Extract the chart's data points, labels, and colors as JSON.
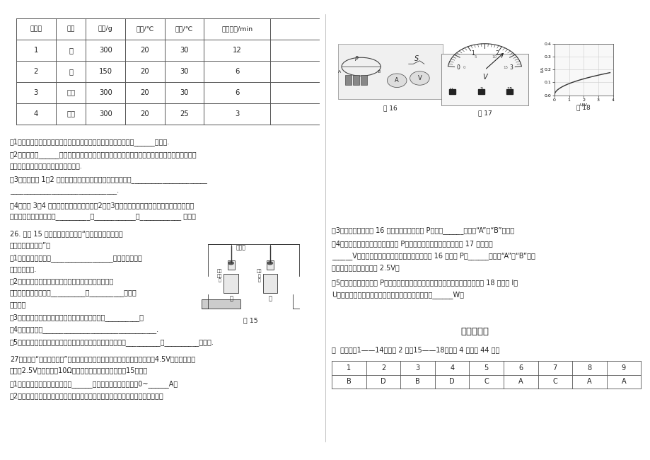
{
  "page_bg": "#ffffff",
  "table_headers": [
    "烧杯号",
    "液体",
    "质量/g",
    "初温/℃",
    "末温/℃",
    "加热时间/min"
  ],
  "table_rows": [
    [
      "1",
      "水",
      "300",
      "20",
      "30",
      "12"
    ],
    [
      "2",
      "水",
      "150",
      "20",
      "30",
      "6"
    ],
    [
      "3",
      "煎油",
      "300",
      "20",
      "30",
      "6"
    ],
    [
      "4",
      "煎油",
      "300",
      "20",
      "25",
      "3"
    ]
  ],
  "answer_table_headers": [
    "1",
    "2",
    "3",
    "4",
    "5",
    "6",
    "7",
    "8",
    "9"
  ],
  "answer_table_row": [
    "B",
    "D",
    "B",
    "D",
    "C",
    "A",
    "C",
    "A",
    "A"
  ]
}
